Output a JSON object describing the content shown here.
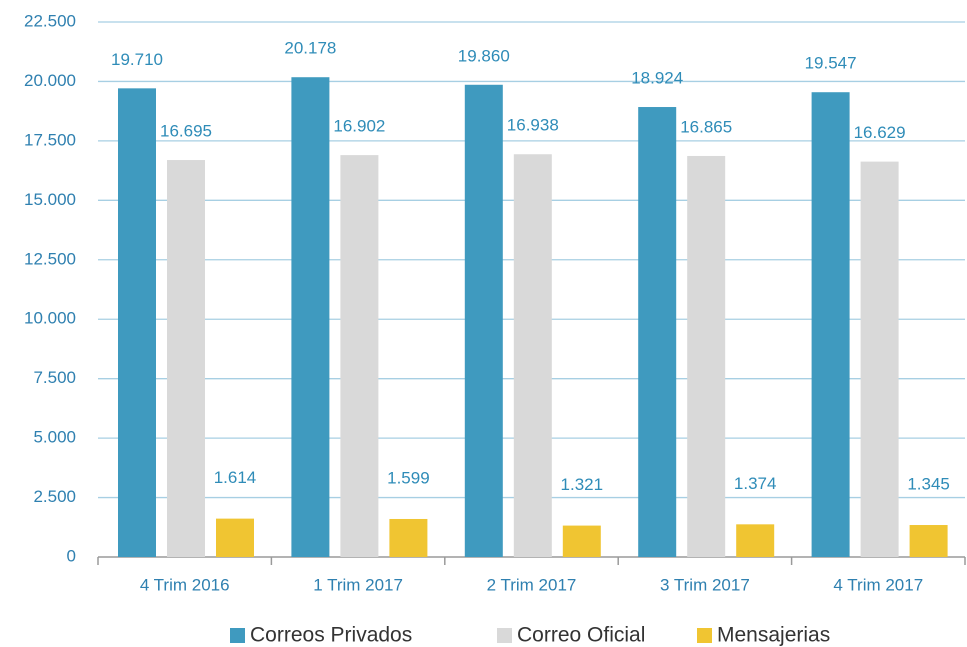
{
  "chart_data": {
    "type": "bar",
    "categories": [
      "4 Trim 2016",
      "1 Trim 2017",
      "2 Trim 2017",
      "3 Trim 2017",
      "4 Trim 2017"
    ],
    "series": [
      {
        "name": "Correos Privados",
        "color": "#3f9abf",
        "values": [
          19710,
          20178,
          19860,
          18924,
          19547
        ],
        "value_labels": [
          "19.710",
          "20.178",
          "19.860",
          "18.924",
          "19.547"
        ]
      },
      {
        "name": "Correo Oficial",
        "color": "#d9d9d9",
        "values": [
          16695,
          16902,
          16938,
          16865,
          16629
        ],
        "value_labels": [
          "16.695",
          "16.902",
          "16.938",
          "16.865",
          "16.629"
        ]
      },
      {
        "name": "Mensajerias",
        "color": "#f0c532",
        "values": [
          1614,
          1599,
          1321,
          1374,
          1345
        ],
        "value_labels": [
          "1.614",
          "1.599",
          "1.321",
          "1.374",
          "1.345"
        ]
      }
    ],
    "ylim": [
      0,
      22500
    ],
    "yticks": [
      0,
      {
        "value": 2500,
        "label": "2.500"
      },
      {
        "value": 5000,
        "label": "5.000"
      },
      {
        "value": 7500,
        "label": "7.500"
      },
      {
        "value": 10000,
        "label": "10.000"
      },
      {
        "value": 12500,
        "label": "12.500"
      },
      {
        "value": 15000,
        "label": "15.000"
      },
      {
        "value": 17500,
        "label": "17.500"
      },
      {
        "value": 20000,
        "label": "20.000"
      },
      {
        "value": 22500,
        "label": "22.500"
      }
    ],
    "grid": true,
    "legend": "bottom"
  }
}
